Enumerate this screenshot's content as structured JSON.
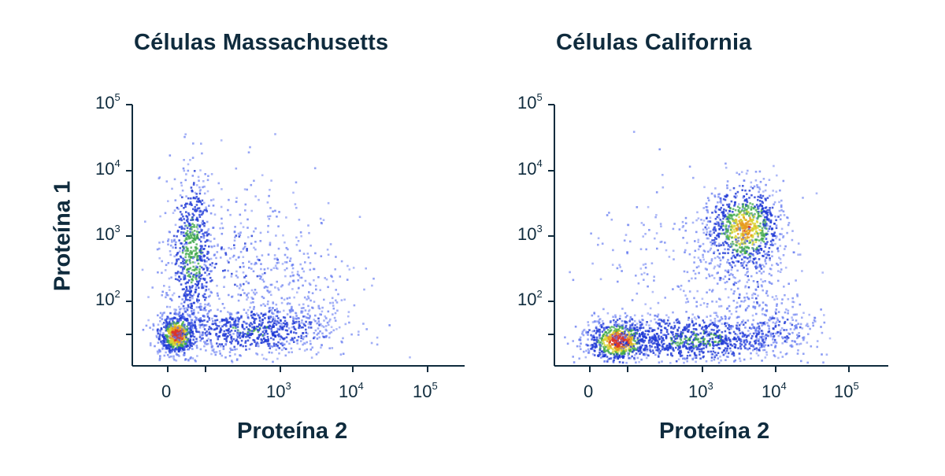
{
  "figure": {
    "panels": [
      {
        "title": "Células Massachusetts",
        "xlabel": "Proteína 2",
        "ylabel": "Proteína 1"
      },
      {
        "title": "Células California",
        "xlabel": "Proteína 2",
        "ylabel": ""
      }
    ]
  },
  "chart_data": [
    {
      "type": "scatter",
      "style": "density (blue → green → yellow → red)",
      "title": "Células Massachusetts",
      "xlabel": "Proteína 2",
      "ylabel": "Proteína 1",
      "xscale": "biexponential",
      "yscale": "log",
      "x_ticks": [
        "0",
        "10³",
        "10⁴",
        "10⁵"
      ],
      "y_ticks": [
        "10²",
        "10³",
        "10⁴",
        "10⁵"
      ],
      "clusters": [
        {
          "name": "",
          "x_center": "≈0",
          "y_center": 30,
          "density": "highest"
        },
        {
          "name": "",
          "x_center": 120,
          "y_center": 1000,
          "density": "medium"
        },
        {
          "name": "",
          "x_center": 800,
          "y_center": 40,
          "density": "low"
        }
      ]
    },
    {
      "type": "scatter",
      "style": "density (blue → green → yellow → red)",
      "title": "Células California",
      "xlabel": "Proteína 2",
      "ylabel": "",
      "xscale": "biexponential",
      "yscale": "log",
      "x_ticks": [
        "0",
        "10³",
        "10⁴",
        "10⁵"
      ],
      "y_ticks": [
        "10²",
        "10³",
        "10⁴",
        "10⁵"
      ],
      "clusters": [
        {
          "name": "",
          "x_center": 30,
          "y_center": 30,
          "density": "highest"
        },
        {
          "name": "",
          "x_center": 800,
          "y_center": 35,
          "density": "medium"
        },
        {
          "name": "",
          "x_center": 5000,
          "y_center": 1500,
          "density": "high"
        }
      ]
    }
  ],
  "palette": [
    "#1f3ad6",
    "#5d74f0",
    "#3fa84a",
    "#d8d431",
    "#e89a1e",
    "#d9362a"
  ]
}
